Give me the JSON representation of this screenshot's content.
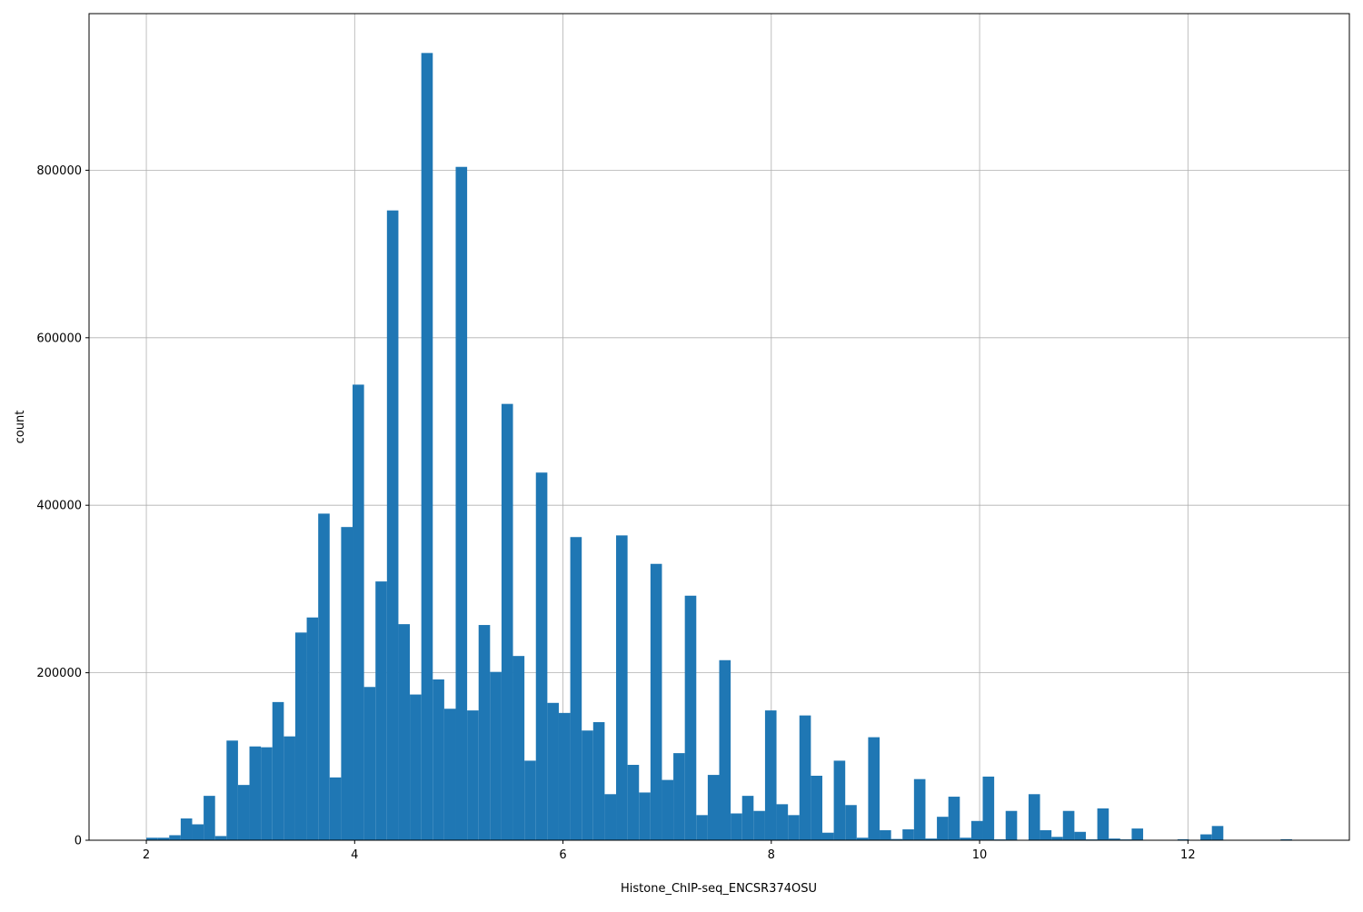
{
  "chart_data": {
    "type": "bar",
    "title": "",
    "xlabel": "Histone_ChIP-seq_ENCSR374OSU",
    "ylabel": "count",
    "xlim": [
      1.45,
      13.55
    ],
    "ylim": [
      0,
      987000
    ],
    "x_ticks": [
      2,
      4,
      6,
      8,
      10,
      12
    ],
    "y_ticks": [
      0,
      200000,
      400000,
      600000,
      800000
    ],
    "grid": true,
    "bar_color": "#1f77b4",
    "bin_start": 2.0,
    "bin_width": 0.11,
    "values": [
      3000,
      3000,
      6000,
      26000,
      19000,
      53000,
      5000,
      119000,
      66000,
      112000,
      111000,
      165000,
      124000,
      248000,
      266000,
      390000,
      75000,
      374000,
      544000,
      183000,
      309000,
      752000,
      258000,
      174000,
      940000,
      192000,
      157000,
      804000,
      155000,
      257000,
      201000,
      521000,
      220000,
      95000,
      439000,
      164000,
      152000,
      362000,
      131000,
      141000,
      55000,
      364000,
      90000,
      57000,
      330000,
      72000,
      104000,
      292000,
      30000,
      78000,
      215000,
      32000,
      53000,
      35000,
      155000,
      43000,
      30000,
      149000,
      77000,
      9000,
      95000,
      42000,
      3000,
      123000,
      12000,
      1500,
      13000,
      73000,
      2000,
      28000,
      52000,
      3000,
      23000,
      76000,
      1000,
      35000,
      500,
      55000,
      12000,
      4000,
      35000,
      10000,
      1000,
      38000,
      2000,
      1000,
      14000,
      0,
      0,
      0,
      1200,
      0,
      7000,
      17000,
      0,
      0,
      0,
      0,
      0,
      1200
    ]
  }
}
